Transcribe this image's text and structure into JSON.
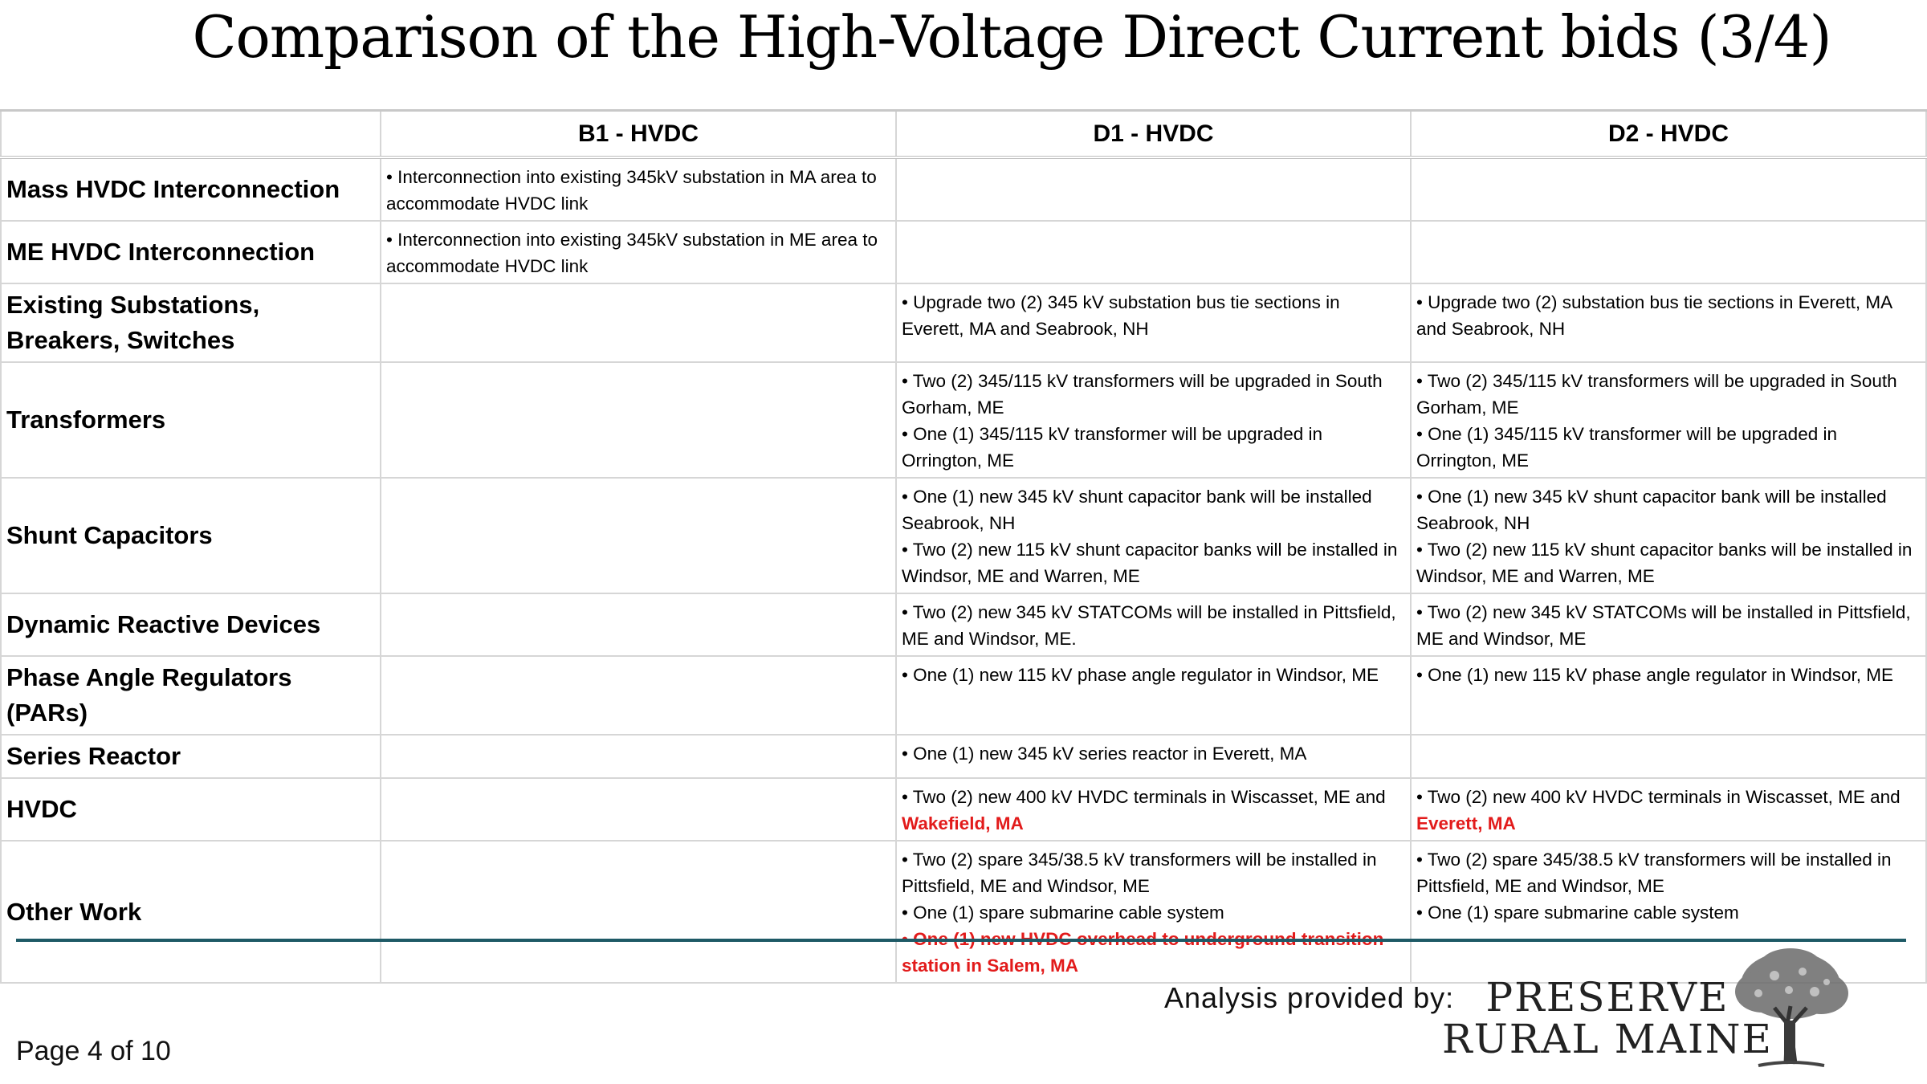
{
  "title": "Comparison of the High-Voltage Direct Current bids (3/4)",
  "table": {
    "headers": [
      "",
      "B1 - HVDC",
      "D1 - HVDC",
      "D2 - HVDC"
    ],
    "rows": [
      {
        "label": "Mass HVDC Interconnection",
        "b1": [
          "• Interconnection into existing 345kV substation in MA area to accommodate HVDC link"
        ],
        "d1": [],
        "d2": []
      },
      {
        "label": "ME HVDC Interconnection",
        "b1": [
          "• Interconnection into existing 345kV substation in ME area to accommodate HVDC link"
        ],
        "d1": [],
        "d2": []
      },
      {
        "label": "Existing Substations, Breakers, Switches",
        "b1": [],
        "d1": [
          "• Upgrade two (2) 345 kV substation bus tie sections in Everett, MA and Seabrook, NH"
        ],
        "d2": [
          "• Upgrade two (2) substation bus tie sections in Everett, MA and Seabrook, NH"
        ]
      },
      {
        "label": "Transformers",
        "b1": [],
        "d1": [
          "• Two (2) 345/115 kV transformers will be upgraded in South Gorham, ME",
          "• One (1) 345/115 kV transformer will be upgraded in Orrington, ME"
        ],
        "d2": [
          "• Two (2) 345/115 kV transformers will be upgraded in South Gorham, ME",
          "• One (1) 345/115 kV transformer will be upgraded in Orrington, ME"
        ]
      },
      {
        "label": "Shunt Capacitors",
        "b1": [],
        "d1": [
          "• One (1) new 345 kV shunt capacitor bank will be installed Seabrook, NH",
          "• Two (2) new 115 kV shunt capacitor banks will be installed in Windsor, ME and Warren, ME"
        ],
        "d2": [
          "• One (1) new 345 kV shunt capacitor bank will be installed Seabrook, NH",
          "• Two (2) new 115 kV shunt capacitor banks will be installed in Windsor, ME and Warren, ME"
        ]
      },
      {
        "label": "Dynamic Reactive Devices",
        "b1": [],
        "d1": [
          "• Two (2) new 345 kV STATCOMs will be installed in Pittsfield, ME and Windsor, ME."
        ],
        "d2": [
          "• Two (2) new 345 kV STATCOMs will be installed in Pittsfield, ME and Windsor, ME"
        ]
      },
      {
        "label": "Phase Angle Regulators (PARs)",
        "b1": [],
        "d1": [
          "• One (1) new 115 kV phase angle regulator in Windsor, ME"
        ],
        "d2": [
          "• One (1) new 115 kV phase angle regulator in Windsor, ME"
        ]
      },
      {
        "label": "Series Reactor",
        "b1": [],
        "d1": [
          "• One (1) new 345 kV series reactor in Everett, MA"
        ],
        "d2": []
      },
      {
        "label": "HVDC",
        "b1": [],
        "d1_text": "• Two (2) new 400 kV HVDC terminals in Wiscasset, ME and",
        "d1_red": "Wakefield, MA",
        "d2_text": "• Two (2) new 400 kV HVDC terminals in Wiscasset, ME and",
        "d2_red": "Everett, MA"
      },
      {
        "label": "Other Work",
        "b1": [],
        "d1": [
          "• Two (2) spare 345/38.5 kV transformers will be installed in Pittsfield, ME and Windsor, ME",
          "• One (1) spare submarine cable system"
        ],
        "d1_red": "• One (1) new HVDC overhead to underground transition station in Salem, MA",
        "d2": [
          "• Two (2) spare 345/38.5 kV transformers will be installed in Pittsfield, ME and Windsor, ME",
          "• One (1) spare submarine cable system"
        ]
      }
    ]
  },
  "footer": {
    "page": "Page 4 of 10",
    "analysis": "Analysis provided by:",
    "logo_line1": "PRESERVE",
    "logo_line2": "RURAL MAINE",
    "accent": "#1e5a66",
    "highlight": "#e21b1b"
  }
}
